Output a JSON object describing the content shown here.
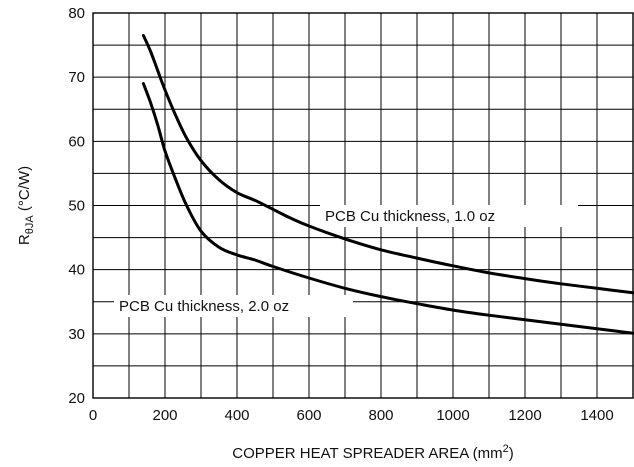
{
  "chart_data": {
    "type": "line",
    "title": "",
    "xlabel": {
      "main": "COPPER HEAT SPREADER AREA (mm",
      "sup": "2",
      "end": ")"
    },
    "ylabel": {
      "main": "R",
      "sub": "θJA",
      "end": " (°C/W)"
    },
    "xlim": [
      0,
      1500
    ],
    "ylim": [
      20,
      80
    ],
    "xticks": [
      0,
      200,
      400,
      600,
      800,
      1000,
      1200,
      1400
    ],
    "yticks": [
      20,
      30,
      40,
      50,
      60,
      70,
      80
    ],
    "grid": true,
    "series": [
      {
        "name": "PCB Cu thickness, 1.0 oz",
        "color": "#000000",
        "x": [
          140,
          160,
          180,
          200,
          230,
          260,
          300,
          350,
          400,
          450,
          500,
          550,
          600,
          700,
          800,
          900,
          1000,
          1100,
          1200,
          1300,
          1400,
          1500
        ],
        "y": [
          76.5,
          74,
          71,
          68,
          64,
          60.5,
          57,
          54,
          52,
          50.8,
          49.4,
          48,
          46.8,
          44.8,
          43.1,
          41.8,
          40.6,
          39.5,
          38.6,
          37.8,
          37.1,
          36.4
        ]
      },
      {
        "name": "PCB Cu thickness, 2.0 oz",
        "color": "#000000",
        "x": [
          140,
          160,
          180,
          200,
          230,
          260,
          300,
          350,
          400,
          450,
          500,
          600,
          700,
          800,
          900,
          1000,
          1100,
          1200,
          1300,
          1400,
          1500
        ],
        "y": [
          69,
          66,
          62.5,
          58.5,
          54,
          50,
          46,
          43.5,
          42.3,
          41.5,
          40.5,
          38.7,
          37.1,
          35.8,
          34.7,
          33.7,
          32.9,
          32.2,
          31.5,
          30.8,
          30.1
        ]
      }
    ]
  }
}
